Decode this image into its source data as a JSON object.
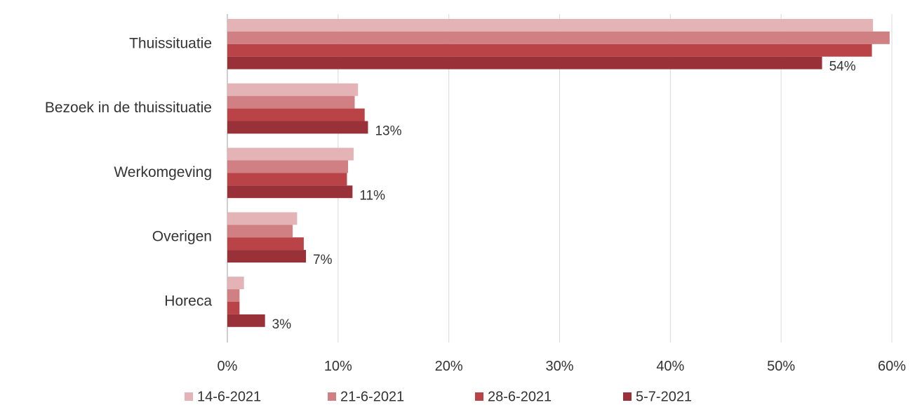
{
  "chart_data": {
    "type": "bar",
    "orientation": "horizontal",
    "title": "",
    "xlabel": "",
    "ylabel": "",
    "xlim": [
      0,
      60
    ],
    "x_ticks": [
      "0%",
      "10%",
      "20%",
      "30%",
      "40%",
      "50%",
      "60%"
    ],
    "categories": [
      "Thuissituatie",
      "Bezoek in de thuissituatie",
      "Werkomgeving",
      "Overigen",
      "Horeca"
    ],
    "series": [
      {
        "name": "14-6-2021",
        "color": "#e3b3b5",
        "values": [
          58.3,
          11.8,
          11.4,
          6.3,
          1.5
        ]
      },
      {
        "name": "21-6-2021",
        "color": "#d07f82",
        "values": [
          59.8,
          11.5,
          10.9,
          5.9,
          1.1
        ]
      },
      {
        "name": "28-6-2021",
        "color": "#b94346",
        "values": [
          58.2,
          12.4,
          10.8,
          6.9,
          1.1
        ]
      },
      {
        "name": "5-7-2021",
        "color": "#983238",
        "values": [
          53.7,
          12.7,
          11.3,
          7.1,
          3.4
        ]
      }
    ],
    "data_labels": [
      "54%",
      "13%",
      "11%",
      "7%",
      "3%"
    ],
    "grid": true,
    "legend_position": "bottom"
  }
}
